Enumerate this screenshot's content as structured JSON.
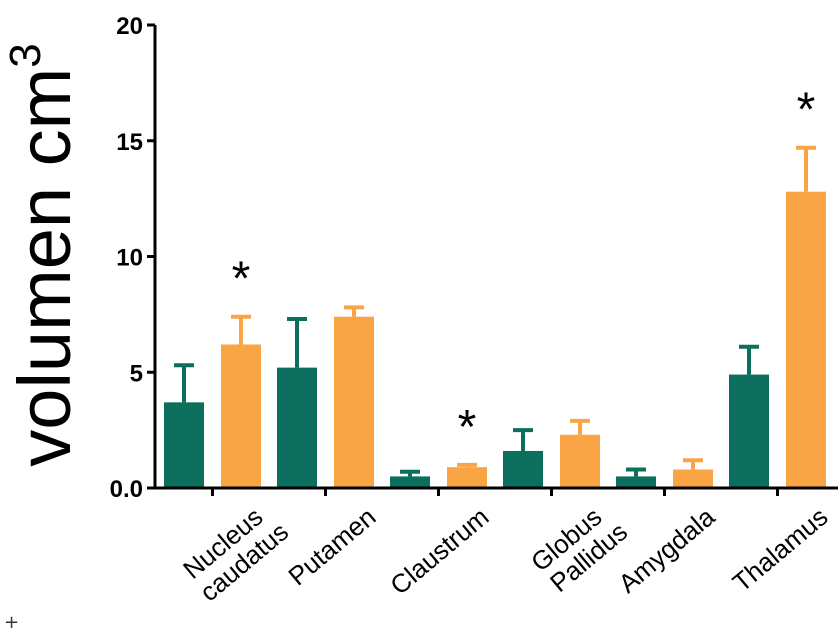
{
  "chart_data": {
    "type": "bar",
    "ylabel": "volumen cm",
    "ylabel_superscript": "3",
    "xlabel": "",
    "title": "",
    "ylim": [
      0,
      20
    ],
    "yticks": [
      "0.0",
      "5",
      "10",
      "15",
      "20"
    ],
    "categories": [
      {
        "lines": [
          "Nucleus",
          "caudatus"
        ]
      },
      {
        "lines": [
          "Putamen"
        ]
      },
      {
        "lines": [
          "Claustrum"
        ]
      },
      {
        "lines": [
          "Globus",
          "Pallidus"
        ]
      },
      {
        "lines": [
          "Amygdala"
        ]
      },
      {
        "lines": [
          "Thalamus"
        ]
      }
    ],
    "series": [
      {
        "color": "#0c6e5c",
        "values": [
          3.7,
          5.2,
          0.5,
          1.6,
          0.5,
          4.9
        ],
        "errors": [
          1.6,
          2.1,
          0.2,
          0.9,
          0.3,
          1.2
        ]
      },
      {
        "color": "#f9a546",
        "values": [
          6.2,
          7.4,
          0.9,
          2.3,
          0.8,
          12.8
        ],
        "errors": [
          1.2,
          0.4,
          0.1,
          0.6,
          0.4,
          1.9
        ]
      }
    ],
    "significance": [
      {
        "category": 0,
        "series": 1,
        "label": "*"
      },
      {
        "category": 2,
        "series": 1,
        "label": "*"
      },
      {
        "category": 5,
        "series": 1,
        "label": "*"
      }
    ],
    "grid": false,
    "legend": "none"
  },
  "corner_mark": "+"
}
